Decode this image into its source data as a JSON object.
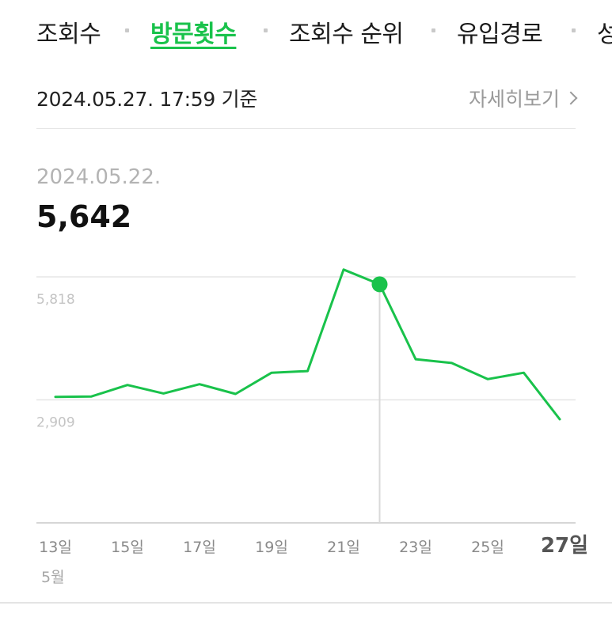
{
  "tabs": [
    {
      "label": "조회수",
      "active": false
    },
    {
      "label": "방문횟수",
      "active": true
    },
    {
      "label": "조회수 순위",
      "active": false
    },
    {
      "label": "유입경로",
      "active": false
    },
    {
      "label": "성",
      "active": false
    }
  ],
  "header": {
    "timestamp": "2024.05.27. 17:59 기준",
    "detail_link": "자세히보기"
  },
  "selection": {
    "date": "2024.05.22.",
    "value": "5,642"
  },
  "colors": {
    "accent": "#19c24b",
    "grid": "#e6e6e6",
    "muted_text": "#b3b3b3"
  },
  "chart_data": {
    "type": "line",
    "x": [
      "13일",
      "14일",
      "15일",
      "16일",
      "17일",
      "18일",
      "19일",
      "20일",
      "21일",
      "22일",
      "23일",
      "24일",
      "25일",
      "26일",
      "27일"
    ],
    "x_tick_labels": [
      "13일",
      "15일",
      "17일",
      "19일",
      "21일",
      "23일",
      "25일",
      "27일"
    ],
    "x_month_label": "5월",
    "highlight_tick": "27일",
    "series": [
      {
        "values": [
          2980,
          2990,
          3260,
          3060,
          3280,
          3050,
          3550,
          3590,
          5990,
          5642,
          3870,
          3780,
          3400,
          3550,
          2450
        ]
      }
    ],
    "y_tick_labels": [
      "5,818",
      "2,909"
    ],
    "y_tick_values": [
      5818,
      2909
    ],
    "ylim": [
      0,
      5818
    ],
    "selected_index": 9,
    "grid": true
  }
}
